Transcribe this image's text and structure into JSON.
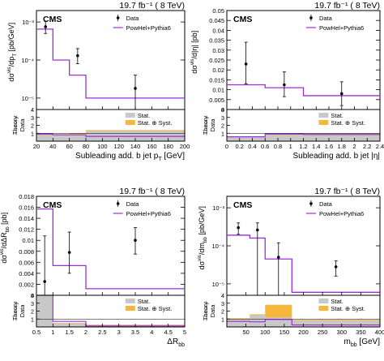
{
  "colors": {
    "mc_line": "#9b30d9",
    "data": "#000000",
    "stat_band": "#c8c8c8",
    "syst_band": "#f5b83d",
    "axis": "#000000"
  },
  "chart_data": [
    {
      "id": "subleading-pt",
      "type": "line",
      "header": "19.7 fb⁻¹ ( 8 TeV)",
      "experiment": "CMS",
      "xlabel": "Subleading add. b jet p_T [GeV]",
      "ylabel": "dσ^vis/dp_T [pb/GeV]",
      "yscale": "log",
      "xlim": [
        20,
        200
      ],
      "ylim": [
        5e-06,
        0.002
      ],
      "xticks": [
        20,
        40,
        60,
        80,
        100,
        120,
        140,
        160,
        180,
        200
      ],
      "yticks": [
        {
          "v": 0.001,
          "label": "10⁻³"
        },
        {
          "v": 0.0001,
          "label": "10⁻⁴"
        },
        {
          "v": 1e-05,
          "label": "10⁻⁵"
        }
      ],
      "bin_edges": [
        20,
        40,
        60,
        80,
        200
      ],
      "mc": [
        0.00065,
        0.0001,
        4e-05,
        1e-05
      ],
      "data": [
        {
          "x": 31,
          "y": 0.00075,
          "lo": 0.0005,
          "hi": 0.00105
        },
        {
          "x": 70,
          "y": 0.00013,
          "lo": 8e-05,
          "hi": 0.0002
        },
        {
          "x": 140,
          "y": 1.8e-05,
          "lo": 5e-06,
          "hi": 4e-05
        }
      ],
      "ratio": {
        "ylabel": "Theory / Data",
        "ylim": [
          0,
          4
        ],
        "yticks": [
          1,
          2,
          3,
          4
        ],
        "stat": [
          0.8,
          0.85,
          0.9,
          1.3
        ],
        "total": [
          0.9,
          0.9,
          1.0,
          1.4
        ],
        "mc": [
          0.9,
          0.8,
          0.8,
          0.6
        ]
      },
      "legend": {
        "data": "Data",
        "mc": "PowHel+Pythia6",
        "stat": "Stat.",
        "total": "Stat. ⊕ Syst."
      }
    },
    {
      "id": "subleading-eta",
      "type": "line",
      "header": "19.7 fb⁻¹ ( 8 TeV)",
      "experiment": "CMS",
      "xlabel": "Subleading add. b jet |η|",
      "ylabel": "dσ^vis/d|η| [pb]",
      "yscale": "linear",
      "xlim": [
        0,
        2.4
      ],
      "ylim": [
        0,
        0.05
      ],
      "xticks": [
        0,
        0.2,
        0.4,
        0.6,
        0.8,
        1,
        1.2,
        1.4,
        1.6,
        1.8,
        2,
        2.2,
        2.4
      ],
      "yticks": [
        {
          "v": 0,
          "label": "0"
        },
        {
          "v": 0.005,
          "label": "0.005"
        },
        {
          "v": 0.01,
          "label": "0.01"
        },
        {
          "v": 0.015,
          "label": "0.015"
        },
        {
          "v": 0.02,
          "label": "0.02"
        },
        {
          "v": 0.025,
          "label": "0.025"
        },
        {
          "v": 0.03,
          "label": "0.03"
        },
        {
          "v": 0.035,
          "label": "0.035"
        },
        {
          "v": 0.04,
          "label": "0.04"
        },
        {
          "v": 0.045,
          "label": "0.045"
        },
        {
          "v": 0.05,
          "label": "0.05"
        }
      ],
      "bin_edges": [
        0,
        0.6,
        1.2,
        2.4
      ],
      "mc": [
        0.0125,
        0.011,
        0.007
      ],
      "data": [
        {
          "x": 0.3,
          "y": 0.023,
          "lo": 0.013,
          "hi": 0.034
        },
        {
          "x": 0.9,
          "y": 0.0125,
          "lo": 0.0065,
          "hi": 0.019
        },
        {
          "x": 1.8,
          "y": 0.008,
          "lo": 0.002,
          "hi": 0.014
        }
      ],
      "ratio": {
        "ylabel": "Theory / Data",
        "ylim": [
          0,
          4
        ],
        "yticks": [
          1,
          2,
          3,
          4
        ],
        "stat": [
          0.5,
          0.8,
          0.95
        ],
        "total": [
          0.5,
          0.9,
          1.0
        ],
        "mc": [
          0.55,
          0.9,
          0.85
        ]
      },
      "legend": {
        "data": "Data",
        "mc": "PowHel+Pythia6",
        "stat": "Stat.",
        "total": "Stat. ⊕ Syst."
      }
    },
    {
      "id": "delta-r-bb",
      "type": "line",
      "header": "19.7 fb⁻¹ ( 8 TeV)",
      "experiment": "CMS",
      "xlabel": "ΔR_bb",
      "ylabel": "dσ^vis/dΔR_bb [pb]",
      "yscale": "linear",
      "xlim": [
        0.5,
        5
      ],
      "ylim": [
        0,
        0.018
      ],
      "xticks": [
        0.5,
        1,
        1.5,
        2,
        2.5,
        3,
        3.5,
        4,
        4.5,
        5
      ],
      "yticks": [
        {
          "v": 0,
          "label": "0"
        },
        {
          "v": 0.002,
          "label": "0.002"
        },
        {
          "v": 0.004,
          "label": "0.004"
        },
        {
          "v": 0.006,
          "label": "0.006"
        },
        {
          "v": 0.008,
          "label": "0.008"
        },
        {
          "v": 0.01,
          "label": "0.01"
        },
        {
          "v": 0.012,
          "label": "0.012"
        },
        {
          "v": 0.014,
          "label": "0.014"
        },
        {
          "v": 0.016,
          "label": "0.016"
        },
        {
          "v": 0.018,
          "label": "0.018"
        }
      ],
      "bin_edges": [
        0.5,
        1,
        2,
        5
      ],
      "mc": [
        0.0157,
        0.0054,
        0.0012
      ],
      "data": [
        {
          "x": 0.75,
          "y": 0.0025,
          "lo": 0.0,
          "hi": 0.0108
        },
        {
          "x": 1.5,
          "y": 0.0078,
          "lo": 0.004,
          "hi": 0.0115
        },
        {
          "x": 3.5,
          "y": 0.01,
          "lo": 0.0075,
          "hi": 0.0123
        }
      ],
      "ratio": {
        "ylabel": "Theory / Data",
        "ylim": [
          0,
          4
        ],
        "yticks": [
          1,
          2,
          3,
          4
        ],
        "stat": [
          4.0,
          0.45,
          0.25
        ],
        "total": [
          4.0,
          0.5,
          0.3
        ],
        "mc": [
          4.0,
          0.7,
          0.12
        ]
      },
      "legend": {
        "data": "Data",
        "mc": "PowHel+Pythia6",
        "stat": "Stat.",
        "total": "Stat. ⊕ Syst."
      }
    },
    {
      "id": "m-bb",
      "type": "line",
      "header": "19.7 fb⁻¹ ( 8 TeV)",
      "experiment": "CMS",
      "xlabel": "m_bb [GeV]",
      "ylabel": "dσ^vis/dm_bb [pb/GeV]",
      "yscale": "log",
      "xlim": [
        0,
        400
      ],
      "ylim": [
        5e-06,
        0.002
      ],
      "xticks": [
        50,
        100,
        150,
        200,
        250,
        300,
        350,
        400
      ],
      "yticks": [
        {
          "v": 0.001,
          "label": "10⁻³"
        },
        {
          "v": 0.0001,
          "label": "10⁻⁴"
        },
        {
          "v": 1e-05,
          "label": "10⁻⁵"
        }
      ],
      "bin_edges": [
        0,
        60,
        100,
        170,
        400
      ],
      "mc": [
        0.00019,
        0.00016,
        4.5e-05,
        6e-06
      ],
      "data": [
        {
          "x": 30,
          "y": 0.0003,
          "lo": 0.0002,
          "hi": 0.0004
        },
        {
          "x": 80,
          "y": 0.00026,
          "lo": 5e-06,
          "hi": 0.0004
        },
        {
          "x": 135,
          "y": 5e-05,
          "lo": 5e-06,
          "hi": 0.00012
        },
        {
          "x": 285,
          "y": 2.8e-05,
          "lo": 1.6e-05,
          "hi": 4e-05
        }
      ],
      "ratio": {
        "ylabel": "Theory / Data",
        "ylim": [
          0,
          4
        ],
        "yticks": [
          1,
          2,
          3,
          4
        ],
        "stat": [
          1.0,
          1.5,
          1.2,
          0.8
        ],
        "total": [
          1.1,
          1.6,
          2.8,
          0.9
        ],
        "mc": [
          0.7,
          0.65,
          0.95,
          0.25
        ]
      },
      "legend": {
        "data": "Data",
        "mc": "PowHel+Pythia6",
        "stat": "Stat.",
        "total": "Stat. ⊕ Syst."
      }
    }
  ]
}
